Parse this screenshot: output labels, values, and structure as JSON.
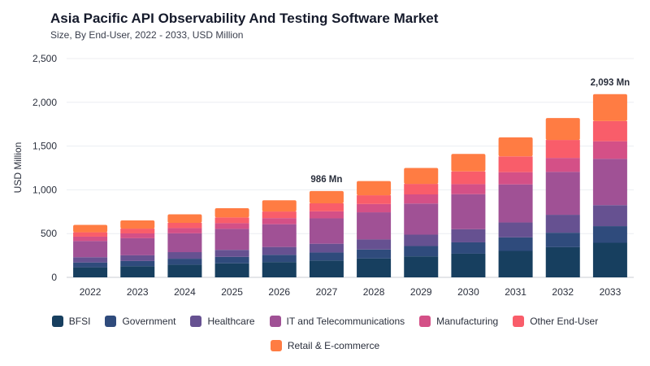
{
  "title": "Asia Pacific API Observability And Testing Software Market",
  "subtitle": "Size, By End-User, 2022 - 2033, USD Million",
  "chart_data": {
    "type": "bar",
    "stacked": true,
    "categories": [
      "2022",
      "2023",
      "2024",
      "2025",
      "2026",
      "2027",
      "2028",
      "2029",
      "2030",
      "2031",
      "2032",
      "2033"
    ],
    "ylabel": "USD Million",
    "ylim": [
      0,
      2500
    ],
    "yticks": [
      0,
      500,
      1000,
      1500,
      2000,
      2500
    ],
    "ytick_labels": [
      "0",
      "500",
      "1,000",
      "1,500",
      "2,000",
      "2,500"
    ],
    "grid": true,
    "legend_position": "bottom",
    "series": [
      {
        "name": "BFSI",
        "color": "#173f5f",
        "values": [
          115,
          127,
          145,
          160,
          175,
          192,
          215,
          240,
          270,
          302,
          345,
          395
        ]
      },
      {
        "name": "Government",
        "color": "#2f4b7c",
        "values": [
          55,
          60,
          68,
          74,
          82,
          92,
          103,
          118,
          130,
          155,
          165,
          190
        ]
      },
      {
        "name": "Healthcare",
        "color": "#665191",
        "values": [
          60,
          65,
          75,
          80,
          90,
          100,
          115,
          130,
          150,
          170,
          205,
          240
        ]
      },
      {
        "name": "IT and Telecommunications",
        "color": "#a05195",
        "values": [
          185,
          195,
          215,
          240,
          260,
          290,
          310,
          355,
          400,
          435,
          490,
          530
        ]
      },
      {
        "name": "Manufacturing",
        "color": "#d45087",
        "values": [
          50,
          55,
          60,
          65,
          70,
          80,
          95,
          105,
          115,
          140,
          160,
          200
        ]
      },
      {
        "name": "Other End-User",
        "color": "#f95d6a",
        "values": [
          50,
          55,
          60,
          65,
          75,
          92,
          100,
          120,
          145,
          180,
          205,
          230
        ]
      },
      {
        "name": "Retail & E-commerce",
        "color": "#ff7c43",
        "values": [
          85,
          93,
          97,
          106,
          128,
          140,
          162,
          182,
          200,
          218,
          250,
          308
        ]
      }
    ],
    "annotations": [
      {
        "category": "2027",
        "text": "986 Mn"
      },
      {
        "category": "2033",
        "text": "2,093 Mn"
      }
    ]
  }
}
